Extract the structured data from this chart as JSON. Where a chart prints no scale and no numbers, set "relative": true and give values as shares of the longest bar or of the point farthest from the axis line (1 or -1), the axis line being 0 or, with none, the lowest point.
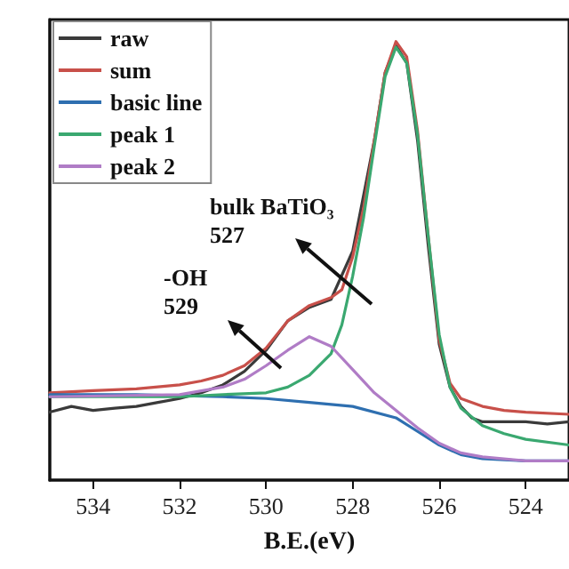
{
  "chart_data": {
    "type": "line",
    "xlabel": "B.E.(eV)",
    "relative": true,
    "xlim": [
      535,
      523
    ],
    "xticks": [
      534,
      532,
      530,
      528,
      526,
      524
    ],
    "grid": false,
    "legend": "top left",
    "marker": "none",
    "line_style": "solid",
    "annotations": [
      "bulk BaTiO₃\n527",
      "-OH\n529"
    ],
    "series": [
      {
        "name": "raw",
        "color": "#3a3a3a",
        "x": [
          535,
          534.5,
          534,
          533.5,
          533,
          532.5,
          532,
          531.5,
          531,
          530.5,
          530,
          529.5,
          529,
          528.5,
          528,
          527.5,
          527.25,
          527,
          526.75,
          526.5,
          526.25,
          526,
          525.75,
          525.5,
          525.25,
          525,
          524.5,
          524,
          523.5,
          523
        ],
        "values": [
          0.155,
          0.168,
          0.159,
          0.164,
          0.168,
          0.177,
          0.186,
          0.199,
          0.217,
          0.248,
          0.296,
          0.363,
          0.394,
          0.412,
          0.522,
          0.774,
          0.929,
          0.991,
          0.951,
          0.774,
          0.531,
          0.31,
          0.212,
          0.168,
          0.142,
          0.133,
          0.133,
          0.133,
          0.128,
          0.133
        ]
      },
      {
        "name": "sum",
        "color": "#c8504a",
        "x": [
          535,
          534,
          533,
          532,
          531.5,
          531,
          530.5,
          530,
          529.5,
          529,
          528.5,
          528.25,
          528,
          527.75,
          527.5,
          527.25,
          527,
          526.75,
          526.5,
          526.25,
          526,
          525.75,
          525.5,
          525,
          524.5,
          524,
          523
        ],
        "values": [
          0.199,
          0.204,
          0.208,
          0.217,
          0.226,
          0.239,
          0.261,
          0.301,
          0.363,
          0.398,
          0.416,
          0.434,
          0.509,
          0.619,
          0.774,
          0.929,
          1,
          0.965,
          0.796,
          0.553,
          0.319,
          0.221,
          0.186,
          0.168,
          0.159,
          0.155,
          0.15
        ]
      },
      {
        "name": "basic line",
        "color": "#2e6fb0",
        "x": [
          535,
          533,
          531,
          530,
          529,
          528,
          527,
          526.5,
          526,
          525.5,
          525,
          524,
          523
        ],
        "values": [
          0.195,
          0.195,
          0.19,
          0.186,
          0.177,
          0.168,
          0.142,
          0.111,
          0.08,
          0.058,
          0.049,
          0.044,
          0.044
        ]
      },
      {
        "name": "peak 1",
        "color": "#3aa870",
        "x": [
          535,
          532,
          531,
          530,
          529.5,
          529,
          528.5,
          528.25,
          528,
          527.75,
          527.5,
          527.25,
          527,
          526.75,
          526.5,
          526.25,
          526,
          525.75,
          525.5,
          525,
          524.5,
          524,
          523
        ],
        "values": [
          0.19,
          0.19,
          0.195,
          0.199,
          0.212,
          0.239,
          0.288,
          0.354,
          0.465,
          0.597,
          0.761,
          0.92,
          0.987,
          0.951,
          0.788,
          0.553,
          0.332,
          0.212,
          0.164,
          0.124,
          0.106,
          0.093,
          0.08
        ]
      },
      {
        "name": "peak 2",
        "color": "#b07cc6",
        "x": [
          535,
          532,
          531,
          530.5,
          530,
          529.5,
          529,
          528.5,
          528,
          527.5,
          527,
          526.5,
          526,
          525.5,
          525,
          524,
          523
        ],
        "values": [
          0.19,
          0.195,
          0.212,
          0.23,
          0.261,
          0.296,
          0.327,
          0.305,
          0.252,
          0.199,
          0.159,
          0.119,
          0.084,
          0.062,
          0.053,
          0.044,
          0.044
        ]
      }
    ]
  }
}
